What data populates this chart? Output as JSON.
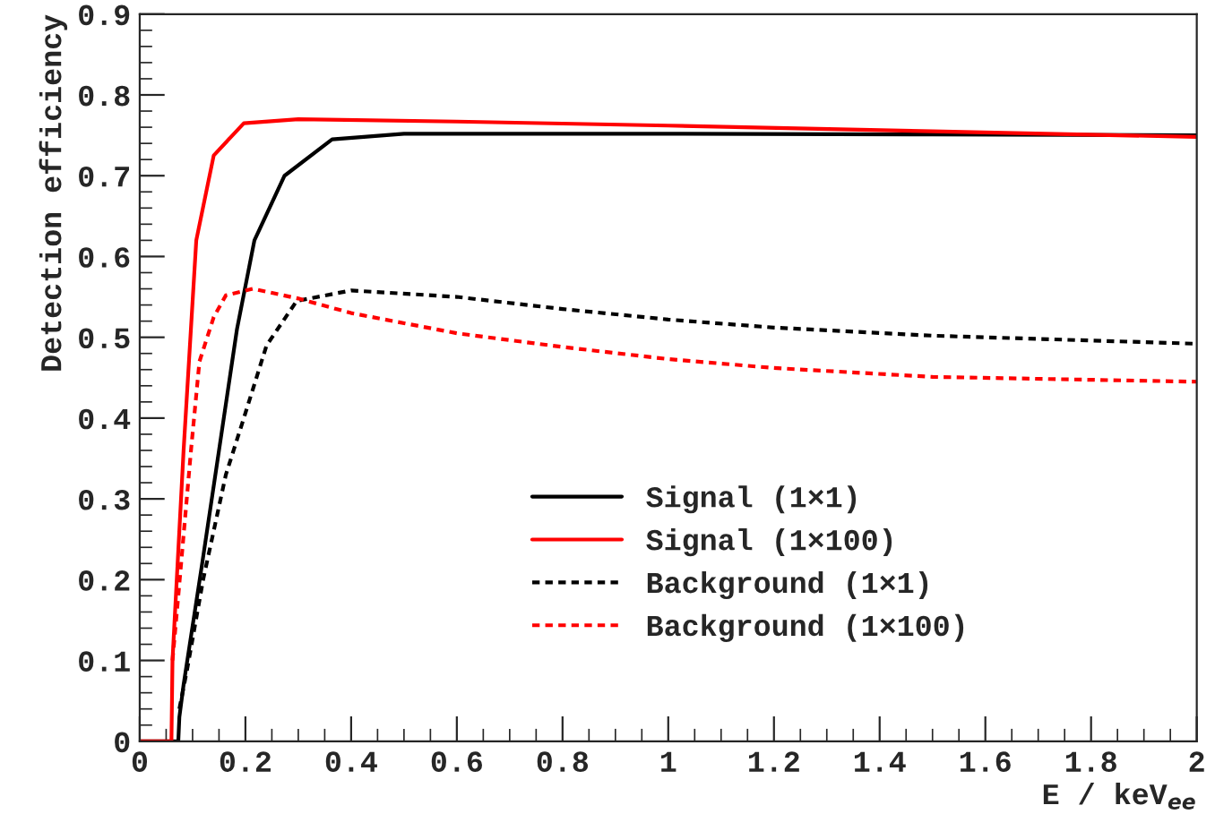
{
  "chart_data": {
    "type": "line",
    "xlabel": "E / keV$_{ee}$",
    "ylabel": "Detection efficiency",
    "xlim": [
      0,
      2
    ],
    "ylim": [
      0,
      0.9
    ],
    "xticks": [
      0,
      0.2,
      0.4,
      0.6,
      0.8,
      1,
      1.2,
      1.4,
      1.6,
      1.8,
      2
    ],
    "yticks": [
      0,
      0.1,
      0.2,
      0.3,
      0.4,
      0.5,
      0.6,
      0.7,
      0.8,
      0.9
    ],
    "grid": false,
    "legend": "bottom right",
    "series": [
      {
        "name": "Signal (1×1)",
        "color": "#000000",
        "line_style": "solid",
        "x": [
          0,
          0.073,
          0.075,
          0.083,
          0.117,
          0.15,
          0.184,
          0.217,
          0.274,
          0.364,
          0.5,
          1,
          1.5,
          2
        ],
        "values": [
          0,
          0,
          0.03,
          0.07,
          0.215,
          0.36,
          0.51,
          0.62,
          0.7,
          0.745,
          0.752,
          0.752,
          0.751,
          0.75
        ]
      },
      {
        "name": "Signal (1×100)",
        "color": "#ff0000",
        "line_style": "solid",
        "x": [
          0,
          0.06,
          0.062,
          0.083,
          0.107,
          0.14,
          0.197,
          0.3,
          0.6,
          1,
          1.5,
          2
        ],
        "values": [
          0,
          0,
          0.1,
          0.36,
          0.62,
          0.725,
          0.765,
          0.77,
          0.767,
          0.762,
          0.755,
          0.748
        ]
      },
      {
        "name": "Background (1×1)",
        "color": "#000000",
        "line_style": "dotted",
        "x": [
          0.075,
          0.09,
          0.12,
          0.163,
          0.197,
          0.24,
          0.297,
          0.4,
          0.6,
          0.8,
          1,
          1.2,
          1.5,
          2
        ],
        "values": [
          0.04,
          0.09,
          0.2,
          0.33,
          0.4,
          0.49,
          0.545,
          0.558,
          0.55,
          0.535,
          0.522,
          0.512,
          0.502,
          0.492
        ]
      },
      {
        "name": "Background (1×100)",
        "color": "#ff0000",
        "line_style": "dotted",
        "x": [
          0.062,
          0.073,
          0.097,
          0.113,
          0.14,
          0.163,
          0.214,
          0.3,
          0.4,
          0.6,
          0.8,
          1,
          1.2,
          1.5,
          2
        ],
        "values": [
          0.1,
          0.18,
          0.36,
          0.47,
          0.525,
          0.552,
          0.56,
          0.548,
          0.53,
          0.505,
          0.488,
          0.473,
          0.462,
          0.451,
          0.445
        ]
      }
    ]
  }
}
